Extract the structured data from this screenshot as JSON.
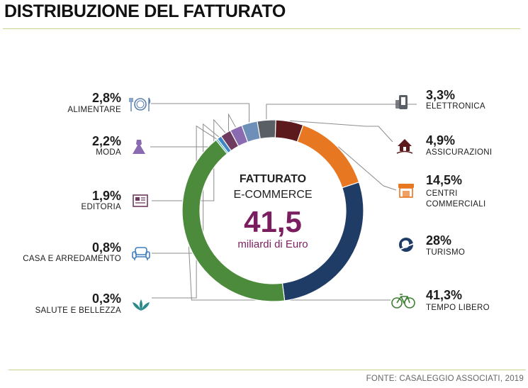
{
  "header": {
    "title": "DISTRIBUZIONE DEL FATTURATO"
  },
  "center": {
    "line1": "FATTURATO",
    "line2": "E-COMMERCE",
    "value": "41,5",
    "unit": "miliardi di Euro"
  },
  "footer": {
    "source": "FONTE: CASALEGGIO ASSOCIATI, 2019"
  },
  "colors": {
    "accent": "#7b1e5f",
    "rule": "#c5d48a",
    "leader": "#8c8c8c"
  },
  "chart_data": {
    "type": "pie",
    "title": "FATTURATO E-COMMERCE",
    "slices": [
      {
        "label": "ELETTRONICA",
        "pct_label": "3,3%",
        "value": 3.3,
        "color": "#5a5f66",
        "icon": "smartphone-icon"
      },
      {
        "label": "ASSICURAZIONI",
        "pct_label": "4,9%",
        "value": 4.9,
        "color": "#5c1a1d",
        "icon": "house-hand-icon"
      },
      {
        "label": "CENTRI COMMERCIALI",
        "label_lines": [
          "CENTRI",
          "COMMERCIALI"
        ],
        "pct_label": "14,5%",
        "value": 14.5,
        "color": "#e87722",
        "icon": "shop-icon"
      },
      {
        "label": "TURISMO",
        "pct_label": "28%",
        "value": 28,
        "color": "#1f3c66",
        "icon": "globe-plane-icon"
      },
      {
        "label": "TEMPO LIBERO",
        "pct_label": "41,3%",
        "value": 41.3,
        "color": "#4b8b3b",
        "icon": "bicycle-icon"
      },
      {
        "label": "SALUTE E BELLEZZA",
        "pct_label": "0,3%",
        "value": 0.3,
        "color": "#2ba3a3",
        "icon": "lotus-icon"
      },
      {
        "label": "CASA E ARREDAMENTO",
        "pct_label": "0,8%",
        "value": 0.8,
        "color": "#3f86c6",
        "icon": "armchair-icon"
      },
      {
        "label": "EDITORIA",
        "pct_label": "1,9%",
        "value": 1.9,
        "color": "#6e3a5f",
        "icon": "newspaper-icon"
      },
      {
        "label": "MODA",
        "pct_label": "2,2%",
        "value": 2.2,
        "color": "#8a6ab0",
        "icon": "dress-icon"
      },
      {
        "label": "ALIMENTARE",
        "pct_label": "2,8%",
        "value": 2.8,
        "color": "#6d8fb8",
        "icon": "plate-cutlery-icon"
      }
    ]
  }
}
